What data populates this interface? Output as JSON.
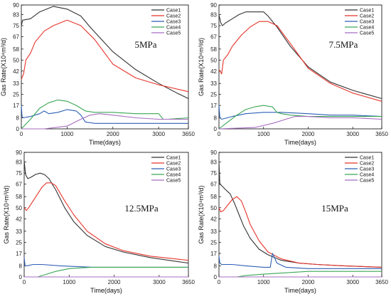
{
  "chart_data": [
    {
      "type": "line",
      "annotation": "5MPa",
      "xlabel": "Time(days)",
      "ylabel": "Gas Rate(X10⁴m³/d)",
      "xlim": [
        0,
        3650
      ],
      "ylim": [
        0,
        90
      ],
      "xticks": [
        "0",
        "1000",
        "2000",
        "3000",
        "3650"
      ],
      "yticks": [
        "0",
        "8",
        "17",
        "25",
        "33",
        "42",
        "50",
        "58",
        "67",
        "75",
        "83",
        "90"
      ],
      "legend_position": "top-right",
      "series": [
        {
          "name": "Case1",
          "color": "#333333",
          "x": [
            0,
            30,
            200,
            400,
            700,
            1000,
            1300,
            1500,
            2000,
            2500,
            3000,
            3400,
            3650
          ],
          "y": [
            75,
            79,
            80,
            85,
            89,
            87,
            82,
            74,
            56,
            43,
            33,
            26,
            22
          ]
        },
        {
          "name": "Case2",
          "color": "#e8332a",
          "x": [
            0,
            50,
            100,
            200,
            300,
            500,
            700,
            1000,
            1300,
            1600,
            2000,
            2500,
            3000,
            3650
          ],
          "y": [
            36,
            40,
            50,
            55,
            63,
            71,
            75,
            79,
            75,
            65,
            47,
            37,
            32,
            27
          ]
        },
        {
          "name": "Case3",
          "color": "#2d5fb5",
          "x": [
            0,
            15,
            40,
            200,
            400,
            500,
            600,
            800,
            1000,
            1200,
            1300,
            1400,
            1600,
            2000,
            3000,
            3650
          ],
          "y": [
            17,
            9,
            8,
            9,
            11,
            13,
            11,
            12,
            14,
            13,
            10,
            5,
            4,
            4,
            4,
            4
          ]
        },
        {
          "name": "Case4",
          "color": "#3aa655",
          "x": [
            0,
            200,
            400,
            600,
            800,
            1000,
            1200,
            1400,
            1600,
            1800,
            2000,
            2500,
            3000,
            3100,
            3200,
            3650
          ],
          "y": [
            0,
            7,
            15,
            19,
            21,
            20,
            17,
            13,
            12,
            12,
            12,
            11,
            11,
            7,
            7,
            8
          ]
        },
        {
          "name": "Case5",
          "color": "#a86cc1",
          "x": [
            0,
            500,
            1000,
            1300,
            1500,
            1700,
            2000,
            2500,
            3000,
            3650
          ],
          "y": [
            0,
            0,
            2,
            7,
            10,
            11,
            10,
            8,
            7,
            7
          ]
        }
      ]
    },
    {
      "type": "line",
      "annotation": "7.5MPa",
      "xlabel": "Time(days)",
      "ylabel": "Gas Rate(X10⁴m³/d)",
      "xlim": [
        0,
        3650
      ],
      "ylim": [
        0,
        90
      ],
      "xticks": [
        "0",
        "1000",
        "2000",
        "3000",
        "3650"
      ],
      "yticks": [
        "0",
        "8",
        "17",
        "25",
        "33",
        "42",
        "50",
        "58",
        "67",
        "75",
        "83",
        "90"
      ],
      "legend_position": "top-right",
      "series": [
        {
          "name": "Case1",
          "color": "#333333",
          "x": [
            0,
            40,
            80,
            150,
            300,
            450,
            600,
            800,
            1000,
            1100,
            1300,
            1600,
            2000,
            2500,
            3000,
            3650
          ],
          "y": [
            83,
            77,
            75,
            77,
            80,
            83,
            85,
            85,
            85,
            82,
            74,
            60,
            45,
            34,
            28,
            22
          ]
        },
        {
          "name": "Case2",
          "color": "#e8332a",
          "x": [
            0,
            60,
            100,
            200,
            300,
            500,
            700,
            900,
            1100,
            1300,
            1600,
            2000,
            2500,
            3000,
            3650
          ],
          "y": [
            43,
            40,
            50,
            54,
            60,
            68,
            74,
            78,
            78,
            75,
            62,
            44,
            33,
            26,
            20
          ]
        },
        {
          "name": "Case3",
          "color": "#2d5fb5",
          "x": [
            0,
            20,
            60,
            300,
            600,
            1000,
            1400,
            2000,
            2500,
            3000,
            3650
          ],
          "y": [
            17,
            8,
            7,
            9,
            11,
            12,
            12,
            11,
            10,
            10,
            9
          ]
        },
        {
          "name": "Case4",
          "color": "#3aa655",
          "x": [
            0,
            200,
            400,
            600,
            800,
            1000,
            1200,
            1300,
            1400,
            1600,
            2000,
            2500,
            3000,
            3650
          ],
          "y": [
            0,
            5,
            10,
            14,
            16,
            17,
            16,
            12,
            11,
            10,
            9,
            9,
            9,
            9
          ]
        },
        {
          "name": "Case5",
          "color": "#a86cc1",
          "x": [
            0,
            800,
            1200,
            1500,
            1700,
            2000,
            2500,
            3000,
            3650
          ],
          "y": [
            0,
            1,
            4,
            7,
            9,
            9,
            8,
            8,
            7
          ]
        }
      ]
    },
    {
      "type": "line",
      "annotation": "12.5MPa",
      "xlabel": "Time(days)",
      "ylabel": "Gas Rate(X10⁴m³/d)",
      "xlim": [
        0,
        3650
      ],
      "ylim": [
        0,
        90
      ],
      "xticks": [
        "0",
        "1000",
        "2000",
        "3000",
        "3650"
      ],
      "yticks": [
        "0",
        "8",
        "17",
        "25",
        "33",
        "42",
        "50",
        "58",
        "67",
        "75",
        "83",
        "90"
      ],
      "legend_position": "top-right",
      "series": [
        {
          "name": "Case1",
          "color": "#333333",
          "x": [
            0,
            30,
            80,
            150,
            250,
            350,
            450,
            550,
            700,
            900,
            1100,
            1400,
            1800,
            2200,
            2800,
            3650
          ],
          "y": [
            84,
            74,
            71,
            72,
            74,
            75,
            74,
            71,
            63,
            50,
            40,
            30,
            22,
            18,
            14,
            10
          ]
        },
        {
          "name": "Case2",
          "color": "#e8332a",
          "x": [
            0,
            50,
            100,
            200,
            300,
            400,
            500,
            600,
            700,
            900,
            1100,
            1400,
            1800,
            2200,
            2800,
            3650
          ],
          "y": [
            50,
            48,
            50,
            55,
            60,
            65,
            68,
            68,
            66,
            55,
            45,
            33,
            24,
            19,
            15,
            12
          ]
        },
        {
          "name": "Case3",
          "color": "#2d5fb5",
          "x": [
            0,
            20,
            60,
            200,
            400,
            800,
            1500,
            2000,
            3000,
            3650
          ],
          "y": [
            14,
            8,
            8,
            9,
            9,
            8,
            7,
            7,
            7,
            7
          ]
        },
        {
          "name": "Case4",
          "color": "#3aa655",
          "x": [
            0,
            300,
            500,
            700,
            1000,
            1500,
            2000,
            2500,
            3000,
            3650
          ],
          "y": [
            0,
            0,
            2,
            4,
            6,
            7,
            7,
            7,
            7,
            7
          ]
        },
        {
          "name": "Case5",
          "color": "#a86cc1",
          "x": [
            0,
            3650
          ],
          "y": [
            0,
            0
          ]
        }
      ]
    },
    {
      "type": "line",
      "annotation": "15MPa",
      "xlabel": "Time(days)",
      "ylabel": "Gas Rate(X10⁴m³/d)",
      "xlim": [
        0,
        3650
      ],
      "ylim": [
        0,
        90
      ],
      "xticks": [
        "0",
        "1000",
        "2000",
        "3000",
        "3650"
      ],
      "yticks": [
        "0",
        "8",
        "17",
        "25",
        "33",
        "42",
        "50",
        "58",
        "67",
        "75",
        "83",
        "90"
      ],
      "legend_position": "top-right",
      "series": [
        {
          "name": "Case1",
          "color": "#333333",
          "x": [
            0,
            20,
            60,
            150,
            250,
            350,
            450,
            550,
            700,
            900,
            1100,
            1400,
            1800,
            2200,
            2800,
            3650
          ],
          "y": [
            83,
            67,
            66,
            63,
            60,
            53,
            45,
            37,
            28,
            20,
            16,
            12,
            10,
            9,
            8,
            7
          ]
        },
        {
          "name": "Case2",
          "color": "#e8332a",
          "x": [
            0,
            40,
            100,
            200,
            300,
            400,
            500,
            600,
            700,
            900,
            1100,
            1400,
            1800,
            2200,
            2800,
            3650
          ],
          "y": [
            50,
            47,
            48,
            52,
            56,
            58,
            55,
            47,
            38,
            26,
            18,
            13,
            10,
            9,
            8,
            7
          ]
        },
        {
          "name": "Case3",
          "color": "#2d5fb5",
          "x": [
            0,
            20,
            60,
            300,
            600,
            1000,
            1150,
            1200,
            1300,
            1500,
            2000,
            3000,
            3650
          ],
          "y": [
            15,
            10,
            9,
            9,
            8,
            7,
            7,
            17,
            10,
            7,
            6,
            6,
            6
          ]
        },
        {
          "name": "Case4",
          "color": "#3aa655",
          "x": [
            0,
            200,
            400,
            600,
            1000,
            1500,
            2000,
            2500,
            3000,
            3650
          ],
          "y": [
            0,
            0,
            0,
            1,
            2,
            3,
            4,
            4,
            4,
            4
          ]
        },
        {
          "name": "Case5",
          "color": "#a86cc1",
          "x": [
            0,
            3650
          ],
          "y": [
            0,
            0
          ]
        }
      ]
    }
  ]
}
